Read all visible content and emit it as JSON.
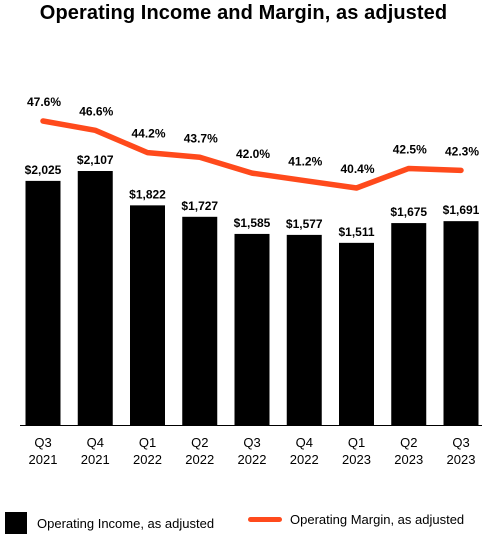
{
  "chart_data": {
    "type": "bar",
    "title": "Operating Income and Margin, as adjusted",
    "categories": [
      [
        "Q3",
        "2021"
      ],
      [
        "Q4",
        "2021"
      ],
      [
        "Q1",
        "2022"
      ],
      [
        "Q2",
        "2022"
      ],
      [
        "Q3",
        "2022"
      ],
      [
        "Q4",
        "2022"
      ],
      [
        "Q1",
        "2023"
      ],
      [
        "Q2",
        "2023"
      ],
      [
        "Q3",
        "2023"
      ]
    ],
    "series": [
      {
        "name": "Operating Income, as adjusted",
        "type": "bar",
        "values": [
          2025,
          2107,
          1822,
          1727,
          1585,
          1577,
          1511,
          1675,
          1691
        ],
        "labels": [
          "$2,025",
          "$2,107",
          "$1,822",
          "$1,727",
          "$1,585",
          "$1,577",
          "$1,511",
          "$1,675",
          "$1,691"
        ],
        "color": "#000000"
      },
      {
        "name": "Operating Margin, as adjusted",
        "type": "line",
        "values": [
          47.6,
          46.6,
          44.2,
          43.7,
          42.0,
          41.2,
          40.4,
          42.5,
          42.3
        ],
        "labels": [
          "47.6%",
          "46.6%",
          "44.2%",
          "43.7%",
          "42.0%",
          "41.2%",
          "40.4%",
          "42.5%",
          "42.3%"
        ],
        "color": "#FF4A1C"
      }
    ],
    "bar_ylim": [
      0,
      2107
    ],
    "line_ylim": [
      40.4,
      47.6
    ],
    "grid": false,
    "legend_position": "bottom"
  }
}
